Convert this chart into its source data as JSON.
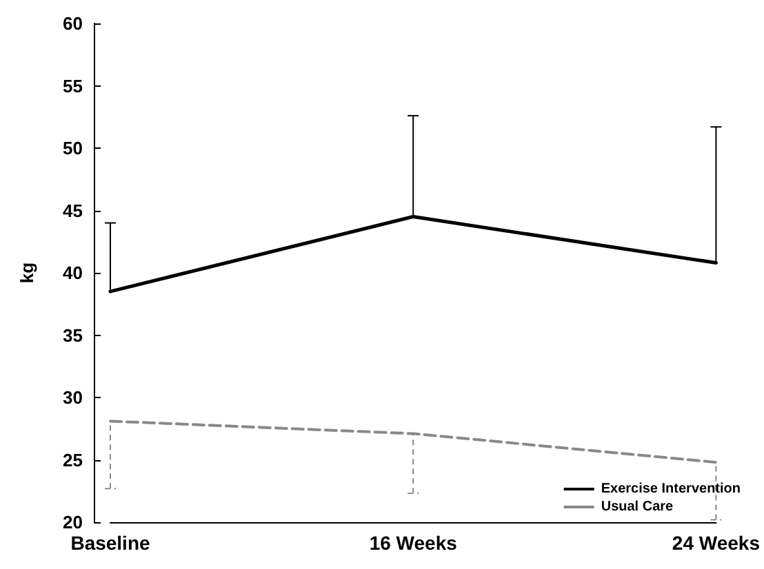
{
  "chart_data": {
    "type": "line",
    "ylabel": "kg",
    "categories": [
      "Baseline",
      "16 Weeks",
      "24 Weeks"
    ],
    "series": [
      {
        "name": "Exercise Intervention",
        "color": "#000000",
        "line_style": "solid",
        "values": [
          38.5,
          44.5,
          40.8
        ],
        "errors": [
          [
            38.5,
            44
          ],
          [
            44.5,
            52.6
          ],
          [
            40.8,
            51.7
          ]
        ]
      },
      {
        "name": "Usual Care",
        "color": "#888888",
        "line_style": "dashed",
        "values": [
          28.1,
          27.1,
          24.8
        ],
        "errors": [
          [
            22.7,
            28.1
          ],
          [
            22.3,
            27.1
          ],
          [
            20.2,
            24.8
          ]
        ]
      }
    ],
    "ylim": [
      20,
      60
    ],
    "yticks": [
      20,
      25,
      30,
      35,
      40,
      45,
      50,
      55,
      60
    ],
    "grid": false,
    "legend": "bottom right",
    "marker": "none"
  }
}
